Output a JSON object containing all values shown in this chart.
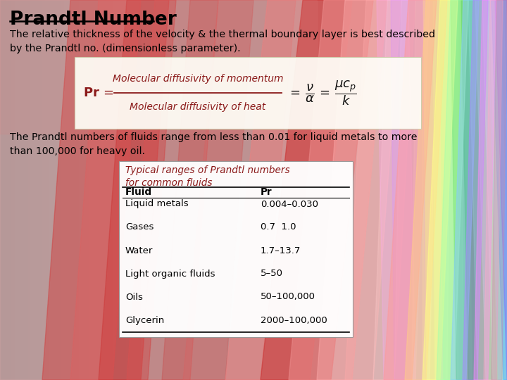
{
  "title": "Prandtl Number",
  "body_text1": "The relative thickness of the velocity & the thermal boundary layer is best described\nby the Prandtl no. (dimensionless parameter).",
  "body_text2": "The Prandtl numbers of fluids range from less than 0.01 for liquid metals to more\nthan 100,000 for heavy oil.",
  "table_title": "Typical ranges of Prandtl numbers\nfor common fluids",
  "table_rows": [
    [
      "Liquid metals",
      "0.004–0.030"
    ],
    [
      "Gases",
      "0.7  1.0"
    ],
    [
      "Water",
      "1.7–13.7"
    ],
    [
      "Light organic fluids",
      "5–50"
    ],
    [
      "Oils",
      "50–100,000"
    ],
    [
      "Glycerin",
      "2000–100,000"
    ]
  ],
  "formula_box_color": "#fffff5",
  "formula_text_color": "#8b1a1a",
  "table_box_color": "#ffffff",
  "table_title_color": "#8b1a1a",
  "title_color": "#000000",
  "body_text_color": "#000000",
  "bg_base": "#b0a8a8",
  "bands": [
    {
      "x0t": 0,
      "x0b": 0,
      "x1t": 200,
      "x1b": 160,
      "color": "#c8a0a0",
      "alpha": 0.7
    },
    {
      "x0t": 100,
      "x0b": 60,
      "x1t": 240,
      "x1b": 200,
      "color": "#d04040",
      "alpha": 0.5
    },
    {
      "x0t": 140,
      "x0b": 100,
      "x1t": 200,
      "x1b": 160,
      "color": "#e06060",
      "alpha": 0.4
    },
    {
      "x0t": 180,
      "x0b": 140,
      "x1t": 250,
      "x1b": 210,
      "color": "#cc3030",
      "alpha": 0.4
    },
    {
      "x0t": 220,
      "x0b": 180,
      "x1t": 310,
      "x1b": 270,
      "color": "#dd5050",
      "alpha": 0.35
    },
    {
      "x0t": 270,
      "x0b": 230,
      "x1t": 360,
      "x1b": 320,
      "color": "#cc4040",
      "alpha": 0.3
    },
    {
      "x0t": 310,
      "x0b": 260,
      "x1t": 420,
      "x1b": 370,
      "color": "#dd6060",
      "alpha": 0.3
    },
    {
      "x0t": 380,
      "x0b": 320,
      "x1t": 500,
      "x1b": 440,
      "color": "#ee8080",
      "alpha": 0.5
    },
    {
      "x0t": 430,
      "x0b": 370,
      "x1t": 530,
      "x1b": 470,
      "color": "#cc3333",
      "alpha": 0.6
    },
    {
      "x0t": 460,
      "x0b": 410,
      "x1t": 550,
      "x1b": 500,
      "color": "#ee9090",
      "alpha": 0.5
    },
    {
      "x0t": 490,
      "x0b": 450,
      "x1t": 570,
      "x1b": 530,
      "color": "#ffb0b0",
      "alpha": 0.4
    },
    {
      "x0t": 520,
      "x0b": 490,
      "x1t": 590,
      "x1b": 560,
      "color": "#ffaaaa",
      "alpha": 0.35
    },
    {
      "x0t": 550,
      "x0b": 530,
      "x1t": 610,
      "x1b": 590,
      "color": "#ffcccc",
      "alpha": 0.3
    },
    {
      "x0t": 570,
      "x0b": 560,
      "x1t": 620,
      "x1b": 610,
      "color": "#ffdddd",
      "alpha": 0.25
    },
    {
      "x0t": 590,
      "x0b": 585,
      "x1t": 640,
      "x1b": 635,
      "color": "#ffeecc",
      "alpha": 0.3
    },
    {
      "x0t": 600,
      "x0b": 600,
      "x1t": 650,
      "x1b": 650,
      "color": "#ffffaa",
      "alpha": 0.35
    },
    {
      "x0t": 615,
      "x0b": 618,
      "x1t": 655,
      "x1b": 658,
      "color": "#ddffaa",
      "alpha": 0.4
    },
    {
      "x0t": 625,
      "x0b": 630,
      "x1t": 665,
      "x1b": 670,
      "color": "#aaffaa",
      "alpha": 0.45
    },
    {
      "x0t": 640,
      "x0b": 648,
      "x1t": 680,
      "x1b": 688,
      "color": "#44cc44",
      "alpha": 0.5
    },
    {
      "x0t": 655,
      "x0b": 665,
      "x1t": 695,
      "x1b": 705,
      "color": "#22aa22",
      "alpha": 0.45
    },
    {
      "x0t": 665,
      "x0b": 678,
      "x1t": 700,
      "x1b": 713,
      "color": "#88ffaa",
      "alpha": 0.4
    },
    {
      "x0t": 675,
      "x0b": 690,
      "x1t": 710,
      "x1b": 725,
      "color": "#aaffcc",
      "alpha": 0.35
    },
    {
      "x0t": 685,
      "x0b": 700,
      "x1t": 715,
      "x1b": 730,
      "color": "#ccffee",
      "alpha": 0.3
    },
    {
      "x0t": 692,
      "x0b": 708,
      "x1t": 718,
      "x1b": 734,
      "color": "#88eeff",
      "alpha": 0.35
    },
    {
      "x0t": 698,
      "x0b": 715,
      "x1t": 720,
      "x1b": 737,
      "color": "#44aaff",
      "alpha": 0.4
    },
    {
      "x0t": 703,
      "x0b": 720,
      "x1t": 720,
      "x1b": 737,
      "color": "#8844ff",
      "alpha": 0.3
    },
    {
      "x0t": 555,
      "x0b": 560,
      "x1t": 600,
      "x1b": 605,
      "color": "#cc88ff",
      "alpha": 0.3
    },
    {
      "x0t": 535,
      "x0b": 545,
      "x1t": 580,
      "x1b": 590,
      "color": "#ffaaff",
      "alpha": 0.25
    }
  ]
}
